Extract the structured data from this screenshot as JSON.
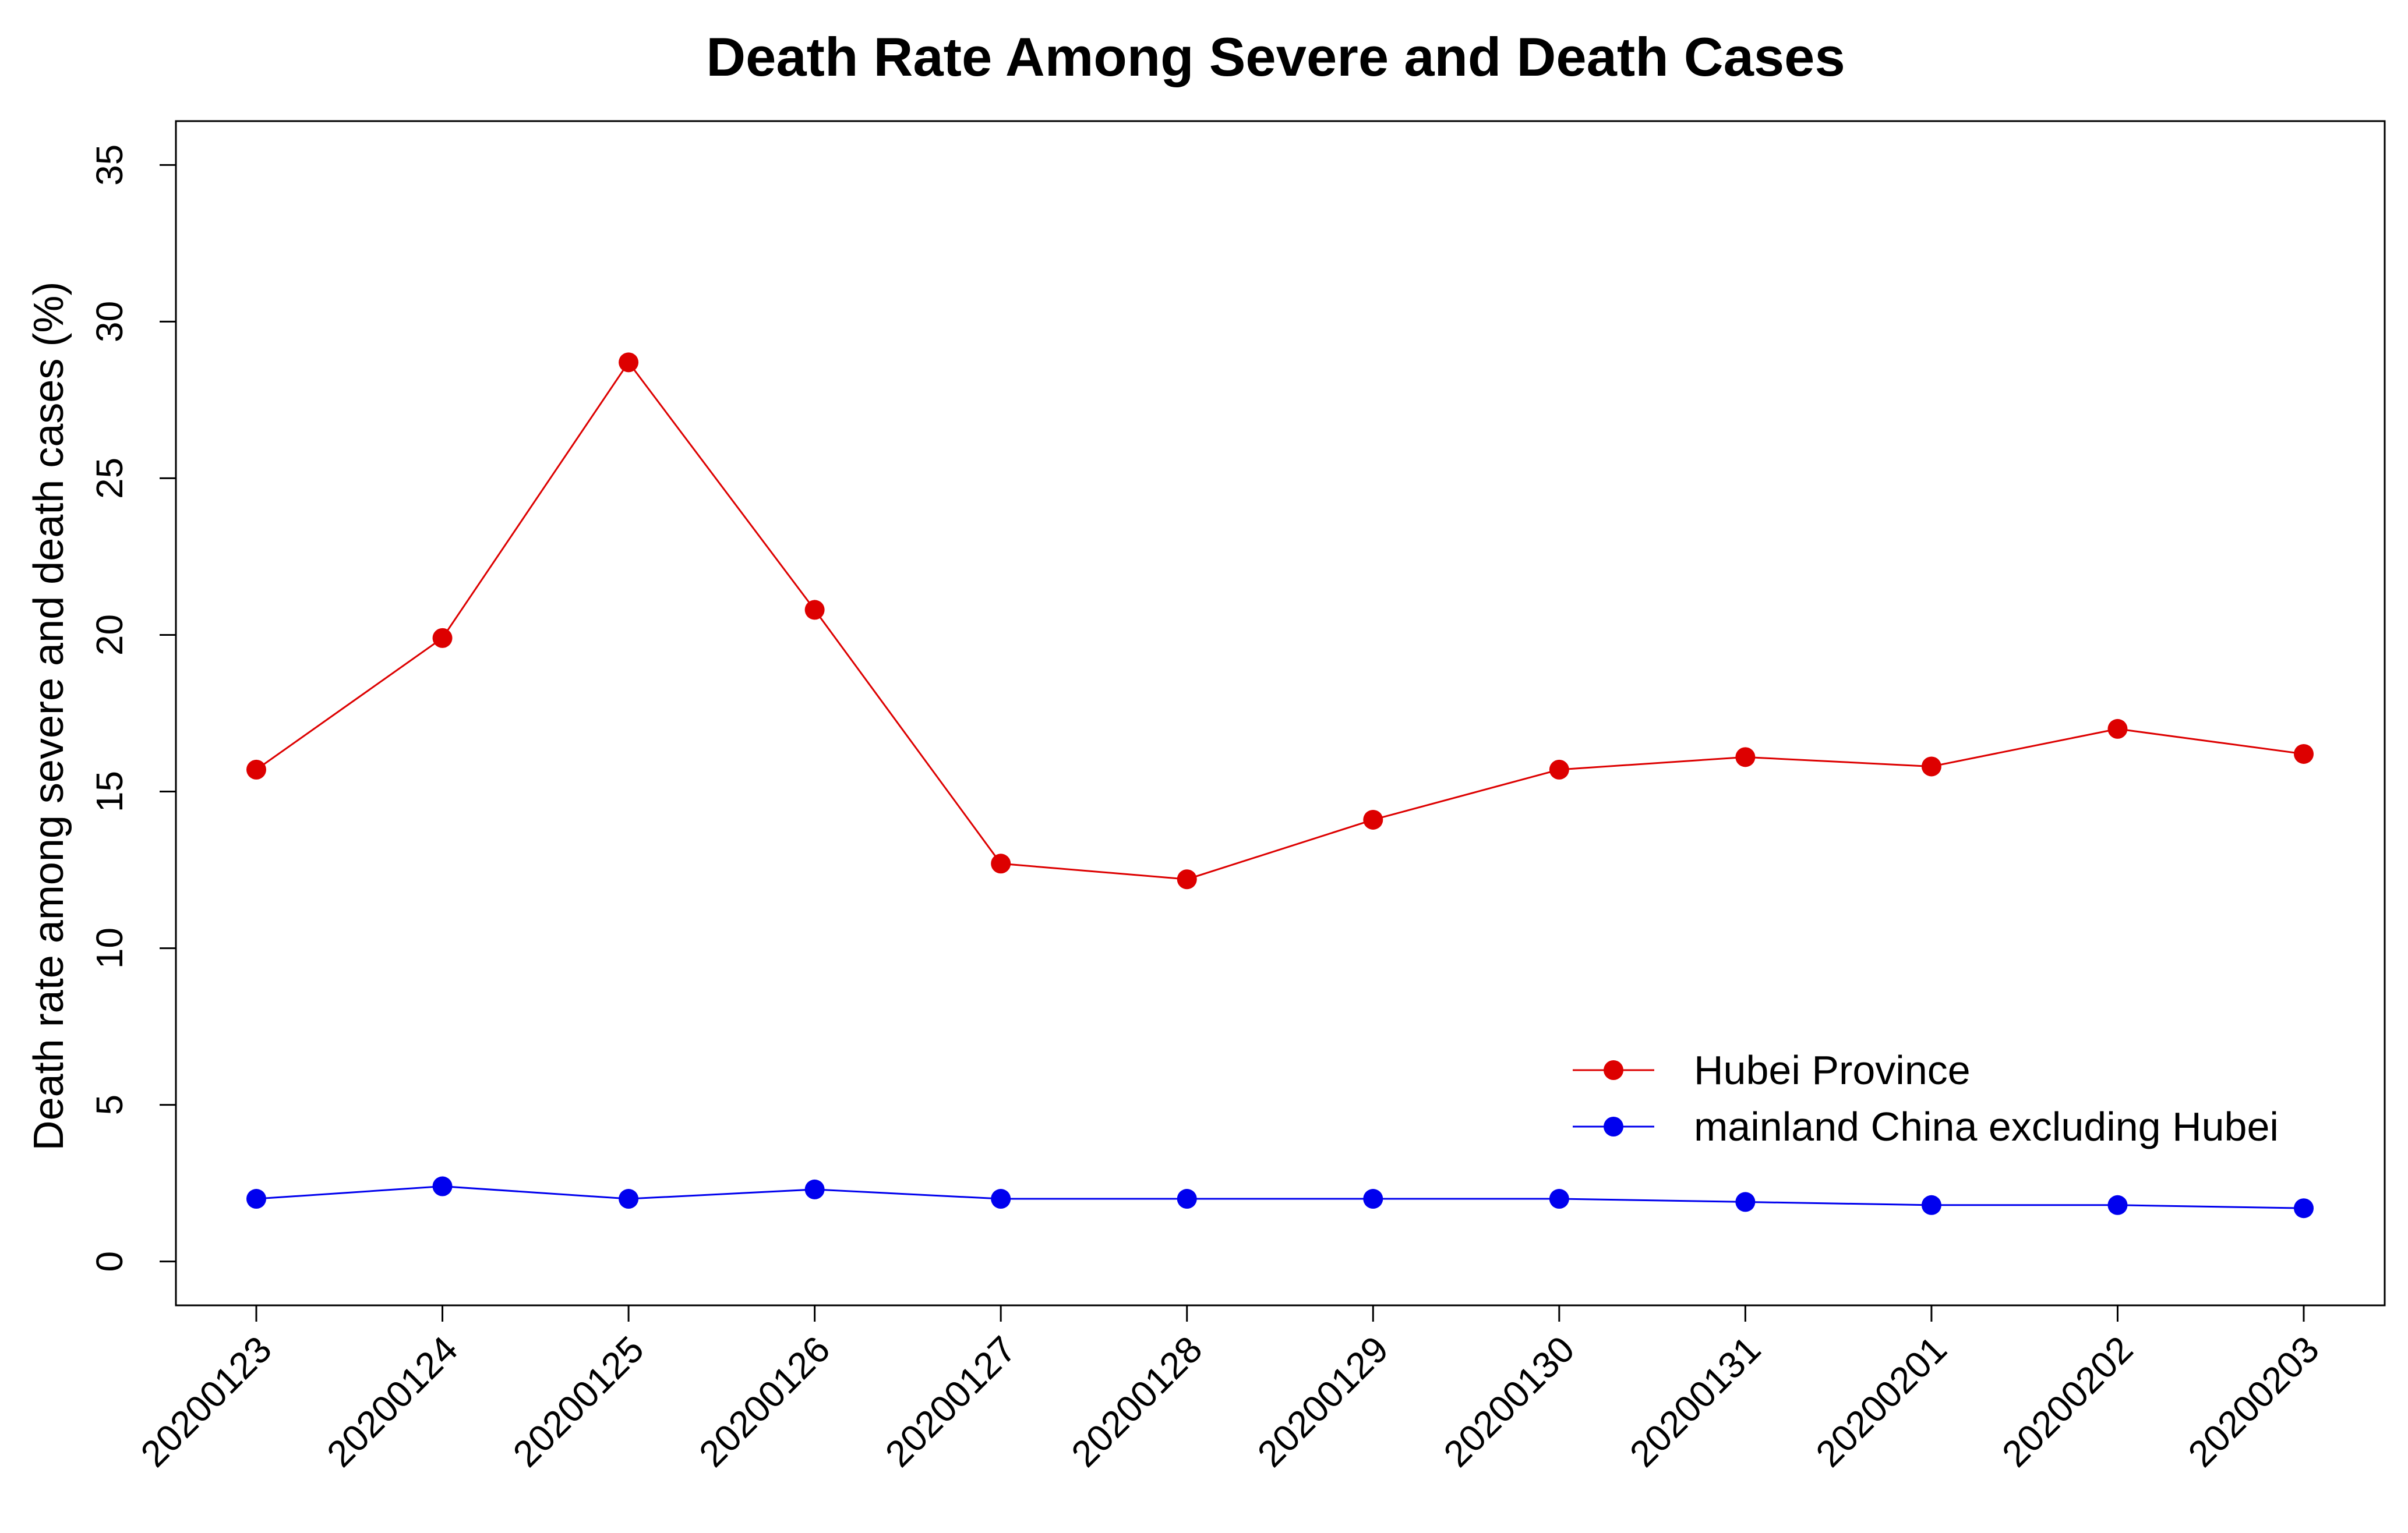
{
  "chart_data": {
    "type": "line",
    "title": "Death Rate Among Severe and Death Cases",
    "xlabel": "",
    "ylabel": "Death rate among severe and death cases (%)",
    "categories": [
      "20200123",
      "20200124",
      "20200125",
      "20200126",
      "20200127",
      "20200128",
      "20200129",
      "20200130",
      "20200131",
      "20200201",
      "20200202",
      "20200203"
    ],
    "ylim": [
      -1.4,
      36.4
    ],
    "yticks": [
      0,
      5,
      10,
      15,
      20,
      25,
      30,
      35
    ],
    "grid": false,
    "legend_position": "bottom-right",
    "series": [
      {
        "name": "Hubei Province",
        "color": "#dd0000",
        "values": [
          15.7,
          19.9,
          28.7,
          20.8,
          12.7,
          12.2,
          14.1,
          15.7,
          16.1,
          15.8,
          17.0,
          16.2
        ]
      },
      {
        "name": "mainland China excluding Hubei",
        "color": "#0000ee",
        "values": [
          2.0,
          2.4,
          2.0,
          2.3,
          2.0,
          2.0,
          2.0,
          2.0,
          1.9,
          1.8,
          1.8,
          1.7
        ]
      }
    ]
  }
}
